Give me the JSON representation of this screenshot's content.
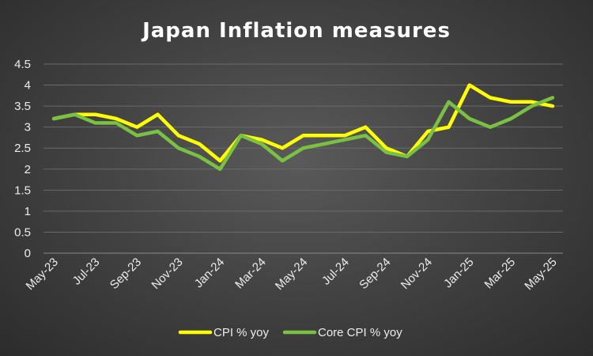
{
  "chart_data": {
    "type": "line",
    "title": "Japan Inflation measures",
    "xlabel": "",
    "ylabel": "",
    "ylim": [
      0,
      4.5
    ],
    "yticks": [
      0,
      0.5,
      1,
      1.5,
      2,
      2.5,
      3,
      3.5,
      4,
      4.5
    ],
    "ytick_labels": [
      "0",
      "0.5",
      "1",
      "1.5",
      "2",
      "2.5",
      "3",
      "3.5",
      "4",
      "4.5"
    ],
    "grid": true,
    "legend_position": "bottom",
    "categories": [
      "May-23",
      "Jun-23",
      "Jul-23",
      "Aug-23",
      "Sep-23",
      "Oct-23",
      "Nov-23",
      "Dec-23",
      "Jan-24",
      "Feb-24",
      "Mar-24",
      "Apr-24",
      "May-24",
      "Jun-24",
      "Jul-24",
      "Aug-24",
      "Sep-24",
      "Oct-24",
      "Nov-24",
      "Dec-24",
      "Jan-25",
      "Feb-25",
      "Mar-25",
      "Apr-25",
      "May-25"
    ],
    "tick_labels": [
      "May-23",
      "Jul-23",
      "Sep-23",
      "Nov-23",
      "Jan-24",
      "Mar-24",
      "May-24",
      "Jul-24",
      "Sep-24",
      "Nov-24",
      "Jan-25",
      "Mar-25",
      "May-25"
    ],
    "series": [
      {
        "name": "CPI % yoy",
        "color": "#ffff00",
        "values": [
          3.2,
          3.3,
          3.3,
          3.2,
          3.0,
          3.3,
          2.8,
          2.6,
          2.2,
          2.8,
          2.7,
          2.5,
          2.8,
          2.8,
          2.8,
          3.0,
          2.5,
          2.3,
          2.9,
          3.0,
          4.0,
          3.7,
          3.6,
          3.6,
          3.5
        ]
      },
      {
        "name": "Core CPI % yoy",
        "color": "#7ac143",
        "values": [
          3.2,
          3.3,
          3.1,
          3.1,
          2.8,
          2.9,
          2.5,
          2.3,
          2.0,
          2.8,
          2.6,
          2.2,
          2.5,
          2.6,
          2.7,
          2.8,
          2.4,
          2.3,
          2.7,
          3.6,
          3.2,
          3.0,
          3.2,
          3.5,
          3.7
        ]
      }
    ]
  }
}
